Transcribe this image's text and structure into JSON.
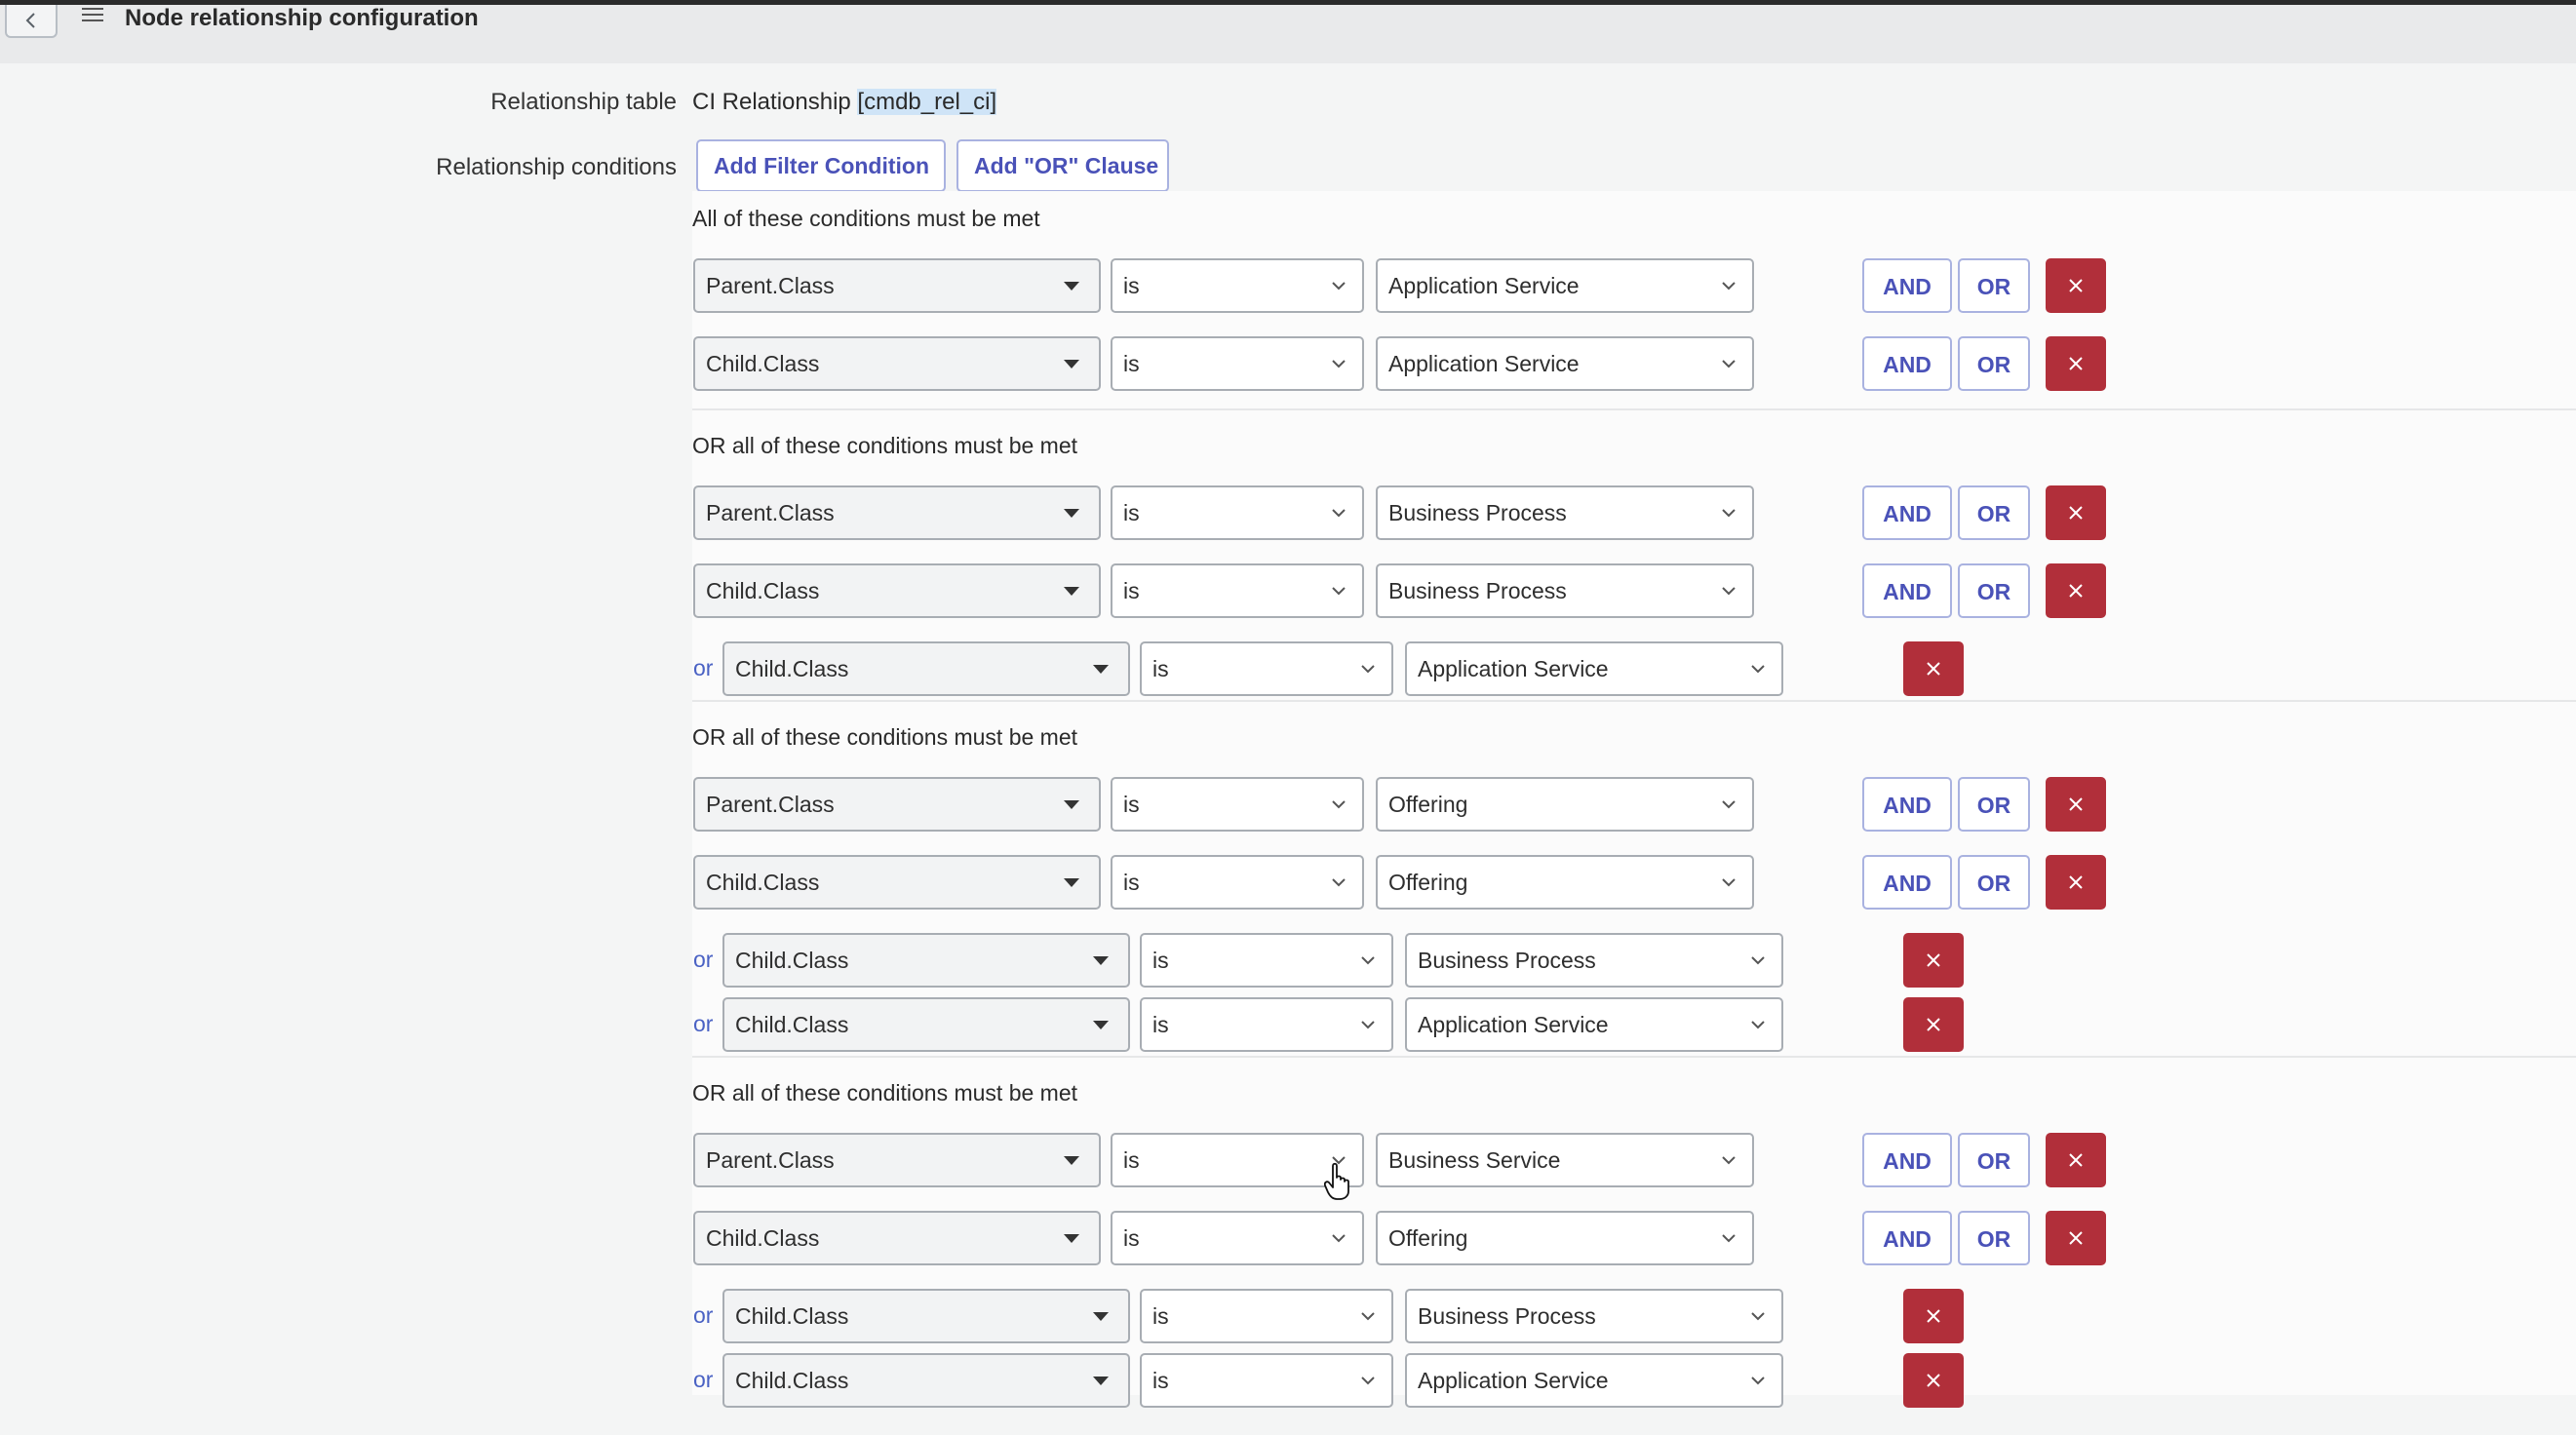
{
  "header": {
    "title": "Node relationship configuration",
    "back_icon": "chevron-left-icon",
    "menu_icon": "hamburger-menu-icon"
  },
  "form": {
    "relationship_table_label": "Relationship table",
    "relationship_table_value": "CI Relationship ",
    "relationship_table_name": "[cmdb_rel_ci]",
    "relationship_conditions_label": "Relationship conditions",
    "add_filter_condition": "Add Filter Condition",
    "add_or_clause": "Add \"OR\" Clause"
  },
  "labels": {
    "and": "AND",
    "or_button": "OR",
    "or_prefix": "or"
  },
  "groups": [
    {
      "heading": "All of these conditions must be met",
      "rows": [
        {
          "field": "Parent.Class",
          "operator": "is",
          "value": "Application Service"
        },
        {
          "field": "Child.Class",
          "operator": "is",
          "value": "Application Service"
        }
      ]
    },
    {
      "heading": "OR all of these conditions must be met",
      "rows": [
        {
          "field": "Parent.Class",
          "operator": "is",
          "value": "Business Process"
        },
        {
          "field": "Child.Class",
          "operator": "is",
          "value": "Business Process"
        },
        {
          "field": "Child.Class",
          "operator": "is",
          "value": "Application Service",
          "or": true
        }
      ]
    },
    {
      "heading": "OR all of these conditions must be met",
      "rows": [
        {
          "field": "Parent.Class",
          "operator": "is",
          "value": "Offering"
        },
        {
          "field": "Child.Class",
          "operator": "is",
          "value": "Offering"
        },
        {
          "field": "Child.Class",
          "operator": "is",
          "value": "Business Process",
          "or": true
        },
        {
          "field": "Child.Class",
          "operator": "is",
          "value": "Application Service",
          "or": true
        }
      ]
    },
    {
      "heading": "OR all of these conditions must be met",
      "rows": [
        {
          "field": "Parent.Class",
          "operator": "is",
          "value": "Business Service"
        },
        {
          "field": "Child.Class",
          "operator": "is",
          "value": "Offering"
        },
        {
          "field": "Child.Class",
          "operator": "is",
          "value": "Business Process",
          "or": true
        },
        {
          "field": "Child.Class",
          "operator": "is",
          "value": "Application Service",
          "or": true
        }
      ]
    }
  ],
  "colors": {
    "accent": "#4a52b8",
    "delete": "#b12f3a"
  }
}
